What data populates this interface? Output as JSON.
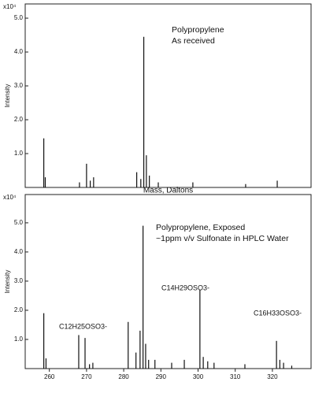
{
  "chart_data": [
    {
      "type": "bar",
      "y_multiplier": "x10⁴",
      "ylabel": "Intensity",
      "xlabel": "Mass, Daltons",
      "annotations": [
        "Polypropylene",
        "As received"
      ],
      "x": [
        258.5,
        258.9,
        268.1,
        270.0,
        271.0,
        271.9,
        283.5,
        284.6,
        285.4,
        286.1,
        286.9,
        289.3,
        298.6,
        312.8,
        321.3
      ],
      "values": [
        1.45,
        0.3,
        0.15,
        0.7,
        0.2,
        0.3,
        0.45,
        0.25,
        4.45,
        0.95,
        0.35,
        0.15,
        0.15,
        0.1,
        0.2
      ],
      "color": "#111111",
      "xlim": [
        253.5,
        330.4
      ],
      "ylim": [
        0,
        5.42
      ],
      "yticks": [
        {
          "value": 1,
          "label": "1.0"
        },
        {
          "value": 2,
          "label": "2.0"
        },
        {
          "value": 3,
          "label": "3.0"
        },
        {
          "value": 4,
          "label": "4.0"
        },
        {
          "value": 5,
          "label": "5.0"
        }
      ]
    },
    {
      "type": "bar",
      "y_multiplier": "x10⁴",
      "ylabel": "Intensity",
      "annotations": [
        "Polypropylene, Exposed",
        "~1ppm v/v Sulfonate in HPLC Water",
        "C12H25OSO3-",
        "C14H29OSO3-",
        "C16H33OSO3-"
      ],
      "x": [
        258.5,
        259.1,
        267.9,
        269.6,
        270.8,
        271.7,
        281.2,
        283.3,
        284.4,
        285.2,
        285.9,
        286.7,
        288.4,
        292.9,
        296.3,
        300.5,
        301.4,
        302.6,
        304.3,
        312.6,
        321.1,
        322.0,
        323.0,
        325.2
      ],
      "values": [
        1.9,
        0.35,
        1.15,
        1.05,
        0.15,
        0.2,
        1.6,
        0.55,
        1.3,
        4.9,
        0.85,
        0.3,
        0.3,
        0.2,
        0.3,
        2.7,
        0.4,
        0.25,
        0.2,
        0.15,
        0.95,
        0.3,
        0.2,
        0.1
      ],
      "color": "#111111",
      "xlim": [
        253.5,
        330.4
      ],
      "ylim": [
        0,
        5.97
      ],
      "xticks": [
        260,
        270,
        280,
        290,
        300,
        310,
        320
      ],
      "yticks": [
        {
          "value": 1,
          "label": "1.0"
        },
        {
          "value": 2,
          "label": "2.0"
        },
        {
          "value": 3,
          "label": "3.0"
        },
        {
          "value": 4,
          "label": "4.0"
        },
        {
          "value": 5,
          "label": "5.0"
        }
      ]
    }
  ]
}
